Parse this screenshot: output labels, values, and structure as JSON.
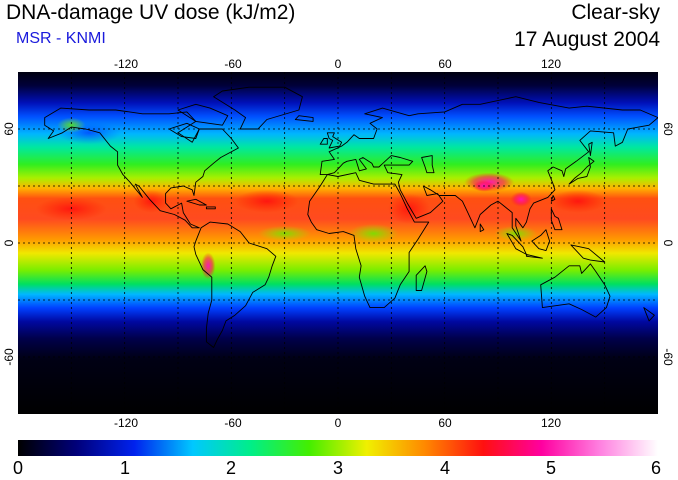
{
  "header": {
    "title": "DNA-damage UV dose (kJ/m2)",
    "subtitle": "MSR - KNMI",
    "sky": "Clear-sky",
    "date": "17 August 2004"
  },
  "map": {
    "lon_ticks": [
      "-120",
      "-60",
      "0",
      "60",
      "120"
    ],
    "lat_ticks": [
      "60",
      "0",
      "-60"
    ],
    "lon_range": [
      -180,
      180
    ],
    "lat_range": [
      -90,
      90
    ],
    "grid_lon": [
      -150,
      -120,
      -90,
      -60,
      -30,
      0,
      30,
      60,
      90,
      120,
      150
    ],
    "grid_lat": [
      -60,
      -30,
      0,
      30,
      60
    ]
  },
  "colorbar": {
    "ticks": [
      "0",
      "1",
      "2",
      "3",
      "4",
      "5",
      "6"
    ],
    "range": [
      0,
      6
    ]
  },
  "colors": {
    "scale": [
      "#000000",
      "#00007a",
      "#0022ee",
      "#00c8ff",
      "#00ee88",
      "#44ee00",
      "#f0f000",
      "#ff8800",
      "#ff1010",
      "#ff00a0",
      "#ff80e0",
      "#ffffff"
    ]
  }
}
